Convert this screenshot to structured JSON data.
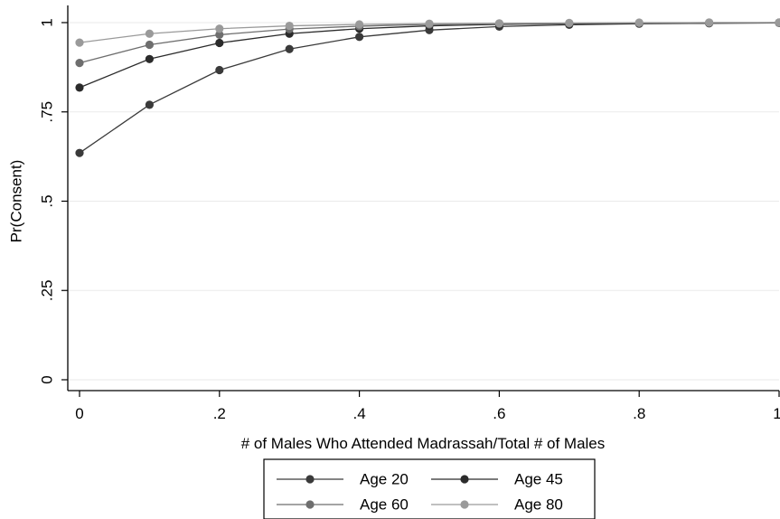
{
  "chart_data": {
    "type": "line",
    "xlabel": "# of Males Who Attended Madrassah/Total # of Males",
    "ylabel": "Pr(Consent)",
    "xlim": [
      0,
      1
    ],
    "ylim": [
      0,
      1
    ],
    "x": [
      0,
      0.1,
      0.2,
      0.3,
      0.4,
      0.5,
      0.6,
      0.7,
      0.8,
      0.9,
      1
    ],
    "x_ticks": [
      0,
      0.2,
      0.4,
      0.6,
      0.8,
      1
    ],
    "x_tick_labels": [
      "0",
      ".2",
      ".4",
      ".6",
      ".8",
      "1"
    ],
    "y_ticks": [
      0,
      0.25,
      0.5,
      0.75,
      1
    ],
    "y_tick_labels": [
      "0",
      ".25",
      ".5",
      ".75",
      "1"
    ],
    "grid": "horizontal",
    "legend_position": "bottom",
    "series": [
      {
        "name": "Age 20",
        "color": "#3a3a3a",
        "values": [
          0.635,
          0.77,
          0.867,
          0.926,
          0.96,
          0.979,
          0.989,
          0.994,
          0.997,
          0.998,
          0.999
        ]
      },
      {
        "name": "Age 45",
        "color": "#2b2b2b",
        "values": [
          0.818,
          0.898,
          0.943,
          0.969,
          0.983,
          0.991,
          0.995,
          0.997,
          0.998,
          0.999,
          1.0
        ]
      },
      {
        "name": "Age 60",
        "color": "#6e6e6e",
        "values": [
          0.887,
          0.938,
          0.966,
          0.982,
          0.99,
          0.995,
          0.997,
          0.998,
          0.999,
          1.0,
          1.0
        ]
      },
      {
        "name": "Age 80",
        "color": "#9a9a9a",
        "values": [
          0.944,
          0.969,
          0.983,
          0.991,
          0.995,
          0.997,
          0.998,
          0.999,
          1.0,
          1.0,
          1.0
        ]
      }
    ]
  }
}
